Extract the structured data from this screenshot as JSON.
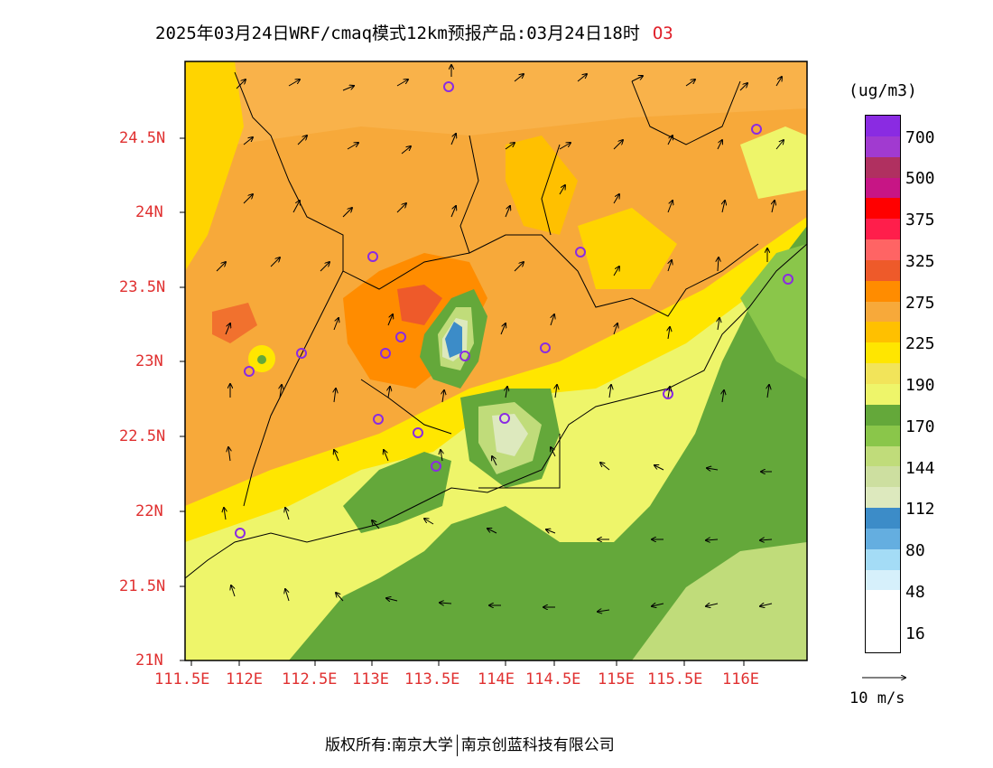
{
  "title": {
    "text": "2025年03月24日WRF/cmaq模式12km预报产品:03月24日18时",
    "pollutant": "O3"
  },
  "axes": {
    "lon_ticks": [
      "111.5E",
      "112E",
      "112.5E",
      "113E",
      "113.5E",
      "114E",
      "114.5E",
      "115E",
      "115.5E",
      "116E"
    ],
    "lat_ticks": [
      "21N",
      "21.5N",
      "22N",
      "22.5N",
      "23N",
      "23.5N",
      "24N",
      "24.5N"
    ],
    "lon_range": [
      111.5,
      117.0
    ],
    "lat_range": [
      21.0,
      25.0
    ]
  },
  "colorbar": {
    "unit": "(ug/m3)",
    "labels": [
      "700",
      "500",
      "375",
      "325",
      "275",
      "225",
      "190",
      "170",
      "144",
      "112",
      "80",
      "48",
      "16"
    ],
    "colors": [
      "#8a2be2",
      "#a13ad0",
      "#b03060",
      "#c71585",
      "#ff0000",
      "#ff1e4b",
      "#ff6464",
      "#ee5a2a",
      "#ff8c00",
      "#f7a93a",
      "#ffc000",
      "#ffe600",
      "#f2e45a",
      "#eef56a",
      "#64a83a",
      "#8ac64a",
      "#c0dc7a",
      "#cddfa0",
      "#dde9be",
      "#3c8cc8",
      "#64aee0",
      "#a4dcf6",
      "#d6f0fb",
      "#ffffff"
    ]
  },
  "wind_reference": {
    "label": "10 m/s"
  },
  "footer": {
    "left": "版权所有:南京大学",
    "right": "南京创蓝科技有限公司"
  },
  "colors": {
    "axis_label": "#e03030",
    "station": "#8a2be2"
  }
}
